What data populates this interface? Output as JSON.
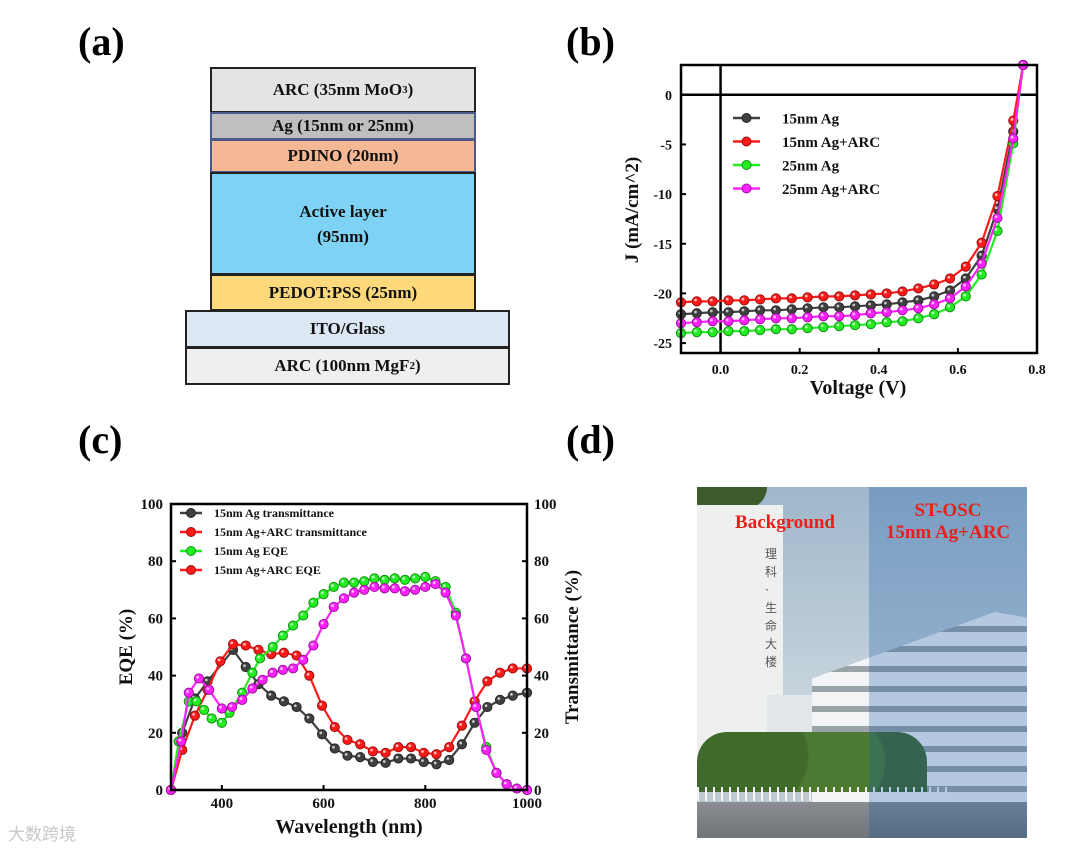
{
  "panel_labels": {
    "a": "(a)",
    "b": "(b)",
    "c": "(c)",
    "d": "(d)"
  },
  "device_stack": {
    "layers": [
      {
        "name": "ARC (35nm MoO",
        "sub": "3",
        "tail": ")",
        "color": "#e4e4e4"
      },
      {
        "name": "Ag (15nm or 25nm)",
        "color": "#bfbfbf"
      },
      {
        "name": "PDINO (20nm)",
        "color": "#f4b994"
      },
      {
        "name": "Active layer",
        "name2": "(95nm)",
        "color": "#7ed3f4"
      },
      {
        "name": "PEDOT:PSS (25nm)",
        "color": "#fdd97c"
      },
      {
        "name": "ITO/Glass",
        "color": "#dce9f5"
      },
      {
        "name": "ARC (100nm MgF",
        "sub": "2",
        "tail": ")",
        "color": "#efefef"
      }
    ]
  },
  "chart_data": [
    {
      "type": "line",
      "title": "",
      "xlabel": "Voltage (V)",
      "ylabel": "J (mA/cm^2)",
      "xlim": [
        -0.1,
        0.8
      ],
      "ylim": [
        -26,
        3
      ],
      "xticks": [
        "0.0",
        "0.2",
        "0.4",
        "0.6",
        "0.8"
      ],
      "xtick_values": [
        0,
        0.2,
        0.4,
        0.6,
        0.8
      ],
      "yticks": [
        "0",
        "-5",
        "-10",
        "-15",
        "-20",
        "-25"
      ],
      "ytick_values": [
        0,
        -5,
        -10,
        -15,
        -20,
        -25
      ],
      "legend_position": "upper-left",
      "x": [
        -0.1,
        -0.06,
        -0.02,
        0.02,
        0.06,
        0.1,
        0.14,
        0.18,
        0.22,
        0.26,
        0.3,
        0.34,
        0.38,
        0.42,
        0.46,
        0.5,
        0.54,
        0.58,
        0.62,
        0.66,
        0.7,
        0.74,
        0.765
      ],
      "series": [
        {
          "name": "15nm Ag",
          "color": "#404040",
          "values": [
            -22.1,
            -22.0,
            -21.9,
            -21.9,
            -21.8,
            -21.7,
            -21.7,
            -21.6,
            -21.5,
            -21.4,
            -21.4,
            -21.3,
            -21.2,
            -21.1,
            -20.9,
            -20.7,
            -20.3,
            -19.7,
            -18.5,
            -16.2,
            -11.5,
            -3.7,
            3
          ]
        },
        {
          "name": "15nm Ag+ARC",
          "color": "#ff1a1a",
          "values": [
            -20.9,
            -20.8,
            -20.8,
            -20.7,
            -20.7,
            -20.6,
            -20.5,
            -20.5,
            -20.4,
            -20.3,
            -20.3,
            -20.2,
            -20.1,
            -20.0,
            -19.8,
            -19.5,
            -19.1,
            -18.5,
            -17.3,
            -14.9,
            -10.2,
            -2.6,
            3
          ]
        },
        {
          "name": "25nm Ag",
          "color": "#22ee22",
          "values": [
            -24.0,
            -23.9,
            -23.9,
            -23.8,
            -23.8,
            -23.7,
            -23.6,
            -23.6,
            -23.5,
            -23.4,
            -23.3,
            -23.2,
            -23.1,
            -22.9,
            -22.8,
            -22.5,
            -22.1,
            -21.4,
            -20.3,
            -18.1,
            -13.7,
            -4.9,
            3
          ]
        },
        {
          "name": "25nm Ag+ARC",
          "color": "#ff22ff",
          "values": [
            -23.0,
            -22.9,
            -22.8,
            -22.8,
            -22.7,
            -22.6,
            -22.5,
            -22.5,
            -22.4,
            -22.3,
            -22.3,
            -22.2,
            -22.0,
            -21.9,
            -21.7,
            -21.5,
            -21.1,
            -20.5,
            -19.3,
            -17.0,
            -12.4,
            -4.4,
            3
          ]
        }
      ]
    },
    {
      "type": "line",
      "title": "",
      "xlabel": "Wavelength (nm)",
      "ylabel": "EQE (%)",
      "y2label": "Transmittance (%)",
      "xlim": [
        300,
        1000
      ],
      "ylim": [
        0,
        100
      ],
      "y2lim": [
        0,
        100
      ],
      "xticks": [
        "400",
        "600",
        "800",
        "1000"
      ],
      "xtick_values": [
        400,
        600,
        800,
        1000
      ],
      "yticks": [
        "0",
        "20",
        "40",
        "60",
        "80",
        "100"
      ],
      "ytick_values": [
        0,
        20,
        40,
        60,
        80,
        100
      ],
      "legend_position": "upper-left",
      "series": [
        {
          "name": "15nm Ag transmittance",
          "color": "#404040",
          "legend_color": "#404040",
          "x": [
            300,
            322,
            347,
            372,
            422,
            447,
            472,
            497,
            522,
            547,
            572,
            597,
            622,
            647,
            672,
            697,
            722,
            747,
            772,
            797,
            822,
            847,
            872,
            897,
            922,
            947,
            972,
            1000
          ],
          "values": [
            0,
            20,
            32,
            38,
            49,
            43,
            37,
            33,
            31,
            29,
            25,
            19.5,
            14.5,
            12,
            11.5,
            9.8,
            9.5,
            11,
            11,
            9.8,
            9,
            10.5,
            16,
            23.5,
            29,
            31.5,
            33,
            34
          ]
        },
        {
          "name": "15nm Ag+ARC transmittance",
          "color": "#ff1a1a",
          "legend_color": "#ff1a1a",
          "x": [
            300,
            322,
            347,
            372,
            397,
            422,
            447,
            472,
            497,
            522,
            547,
            572,
            597,
            622,
            647,
            672,
            697,
            722,
            747,
            772,
            797,
            822,
            847,
            872,
            897,
            922,
            947,
            972,
            1000
          ],
          "values": [
            0,
            14,
            26,
            35,
            45,
            51,
            50.5,
            49,
            47.5,
            48,
            47,
            40,
            29.5,
            22,
            17.5,
            16,
            13.5,
            13,
            15,
            15,
            13,
            12.5,
            15,
            22.5,
            31,
            38,
            41,
            42.5,
            42.5
          ]
        },
        {
          "name": "15nm Ag EQE",
          "color": "#22ee22",
          "legend_color": "#22ee22",
          "x": [
            300,
            315,
            335,
            350,
            365,
            380,
            400,
            415,
            440,
            460,
            475,
            500,
            520,
            540,
            560,
            580,
            600,
            620,
            640,
            660,
            680,
            700,
            720,
            740,
            760,
            780,
            800,
            820,
            840,
            860,
            880,
            900,
            920,
            940,
            960,
            980,
            1000
          ],
          "values": [
            0,
            17,
            31,
            31,
            28,
            25,
            23.5,
            27,
            34,
            41,
            46,
            50,
            54,
            57.5,
            61,
            65.5,
            68.5,
            71,
            72.5,
            72.5,
            73,
            74,
            73.5,
            74,
            73.5,
            74,
            74.5,
            73,
            71,
            62,
            46,
            29,
            15,
            6,
            2,
            0.5,
            0
          ]
        },
        {
          "name": "15nm Ag+ARC EQE",
          "color": "#ff22ff",
          "legend_color": "#ff1a1a",
          "x": [
            300,
            320,
            335,
            355,
            375,
            400,
            420,
            440,
            460,
            480,
            500,
            520,
            540,
            560,
            580,
            600,
            620,
            640,
            660,
            680,
            700,
            720,
            740,
            760,
            780,
            800,
            820,
            840,
            860,
            880,
            900,
            920,
            940,
            960,
            980,
            1000
          ],
          "values": [
            0,
            17,
            34,
            39,
            35,
            28.5,
            29,
            31.5,
            35.5,
            38.5,
            41,
            42,
            42.5,
            45.5,
            50.5,
            58,
            64,
            67,
            69,
            70,
            71,
            70.5,
            70.5,
            69.5,
            70,
            71,
            72,
            69,
            61,
            46,
            29,
            14,
            6,
            2,
            0.5,
            0
          ]
        }
      ]
    }
  ],
  "photo": {
    "left_label": "Background",
    "right_label_line1": "ST-OSC",
    "right_label_line2": "15nm Ag+ARC",
    "building_sign": "理科·生命大楼"
  },
  "watermark": "大数跨境"
}
